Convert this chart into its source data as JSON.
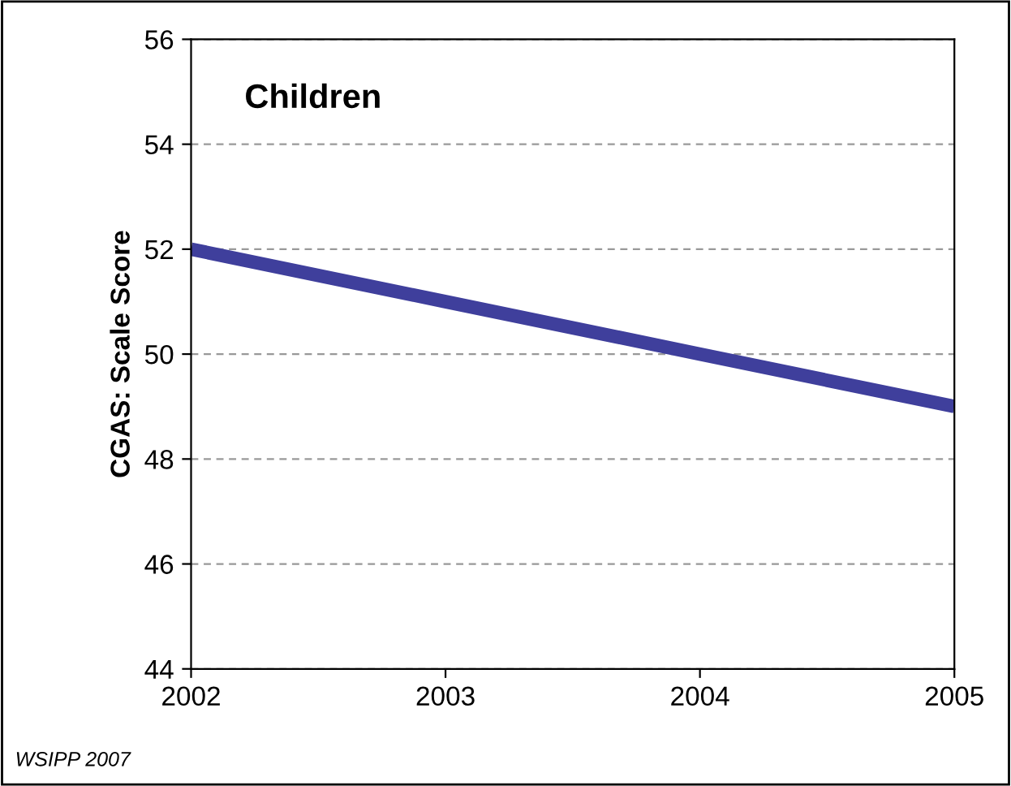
{
  "chart_data": {
    "type": "line",
    "title": "Children",
    "ylabel": "CGAS: Scale Score",
    "x": [
      2002,
      2003,
      2004,
      2005
    ],
    "series": [
      {
        "color": "#3f3f9c",
        "values": [
          52,
          51,
          50,
          49
        ]
      }
    ],
    "xlim": [
      2002,
      2005
    ],
    "xticks": [
      2002,
      2003,
      2004,
      2005
    ],
    "ylim": [
      44,
      56
    ],
    "yticks": [
      44,
      46,
      48,
      50,
      52,
      54,
      56
    ],
    "grid": "y",
    "marker": "none",
    "line_style": "solid",
    "legend": false,
    "annotations": [
      "WSIPP 2007"
    ]
  }
}
